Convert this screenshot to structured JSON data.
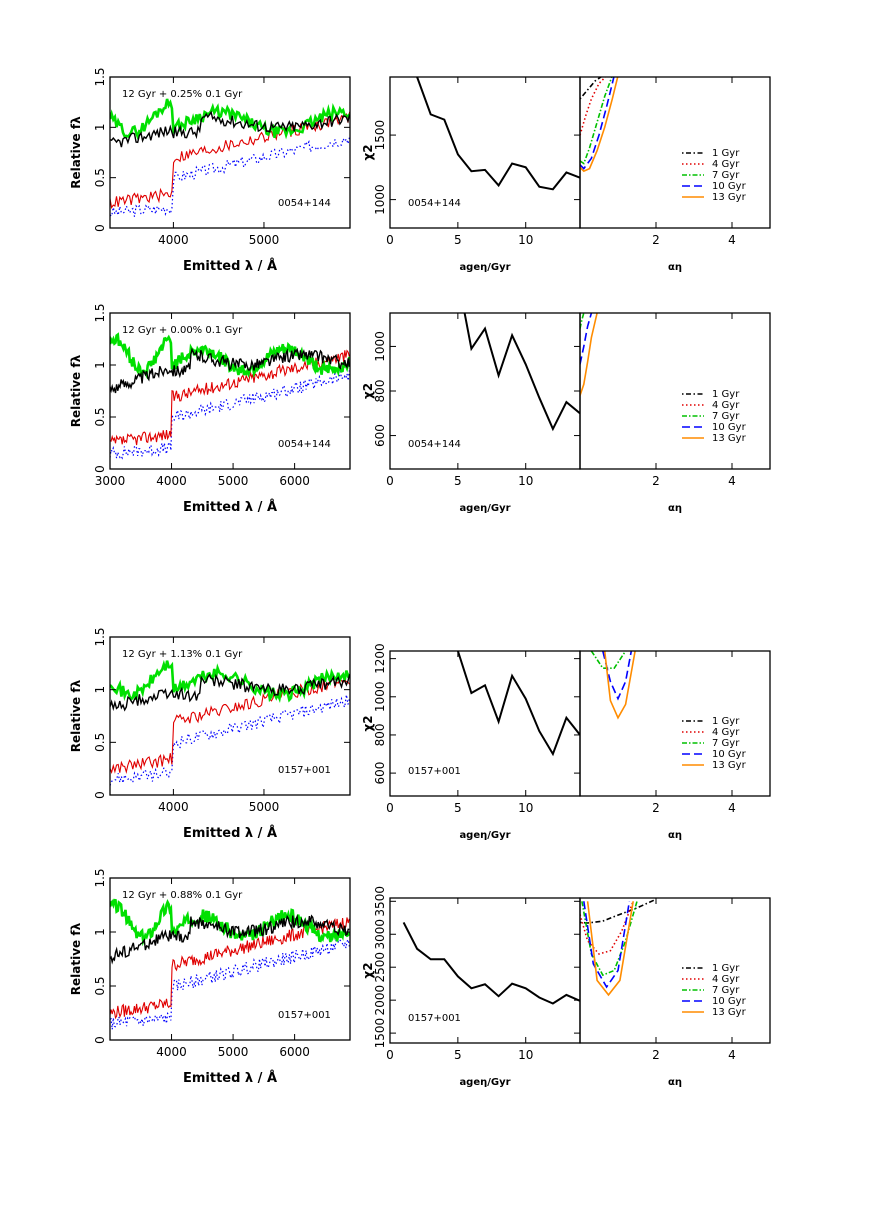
{
  "series_colors": {
    "1 Gyr": "#000000",
    "4 Gyr": "#e00000",
    "7 Gyr": "#00c000",
    "10 Gyr": "#0000ff",
    "13 Gyr": "#ff8c00"
  },
  "legend_labels": [
    "1 Gyr",
    "4 Gyr",
    "7 Gyr",
    "10 Gyr",
    "13 Gyr"
  ],
  "chart_data": [
    {
      "type": "line",
      "panel": "spectrum",
      "annotation": "12 Gyr + 0.25% 0.1 Gyr",
      "object": "0054+144",
      "xlabel": "Emitted λ / Å",
      "ylabel": "Relative fλ",
      "xlim": [
        3300,
        5950
      ],
      "ylim": [
        0,
        1.5
      ],
      "xticks": [
        "4000",
        "5000"
      ],
      "yticks": [
        "0",
        "0.5",
        "1",
        "1.5"
      ]
    },
    {
      "type": "line",
      "panel": "chi2-age",
      "object": "0054+144",
      "xlabel": "ageη/Gyr",
      "ylabel": "χ2",
      "xlim": [
        0,
        14
      ],
      "ylim": [
        780,
        1950
      ],
      "xticks": [
        "0",
        "5",
        "10"
      ],
      "yticks": [
        "1000",
        "1500"
      ],
      "x": [
        2,
        3,
        4,
        5,
        6,
        7,
        8,
        9,
        10,
        11,
        12,
        13,
        14
      ],
      "y": [
        1950,
        1660,
        1620,
        1350,
        1220,
        1230,
        1110,
        1280,
        1250,
        1100,
        1080,
        1210,
        1170
      ]
    },
    {
      "type": "line",
      "panel": "chi2-alpha",
      "xlabel": "αη",
      "xlim": [
        0,
        5
      ],
      "ylim": [
        780,
        1950
      ],
      "xticks": [
        "2",
        "4"
      ],
      "legend_position": "lower-right",
      "series": [
        {
          "name": "1 Gyr",
          "x": [
            0,
            0.2,
            0.4,
            0.6
          ],
          "y": [
            1780,
            1850,
            1920,
            1960
          ]
        },
        {
          "name": "4 Gyr",
          "x": [
            0,
            0.15,
            0.3,
            0.5,
            0.7
          ],
          "y": [
            1500,
            1650,
            1780,
            1900,
            1960
          ]
        },
        {
          "name": "7 Gyr",
          "x": [
            0,
            0.1,
            0.25,
            0.45,
            0.65,
            0.85
          ],
          "y": [
            1300,
            1280,
            1400,
            1600,
            1800,
            1960
          ]
        },
        {
          "name": "10 Gyr",
          "x": [
            0,
            0.1,
            0.3,
            0.5,
            0.7,
            0.9
          ],
          "y": [
            1270,
            1240,
            1320,
            1500,
            1720,
            1960
          ]
        },
        {
          "name": "13 Gyr",
          "x": [
            0,
            0.1,
            0.25,
            0.45,
            0.65,
            0.85,
            1.0
          ],
          "y": [
            1250,
            1220,
            1240,
            1380,
            1560,
            1780,
            1960
          ]
        }
      ]
    },
    {
      "type": "line",
      "panel": "spectrum",
      "annotation": "12 Gyr + 0.00% 0.1 Gyr",
      "object": "0054+144",
      "xlabel": "Emitted λ / Å",
      "ylabel": "Relative fλ",
      "xlim": [
        3000,
        6900
      ],
      "ylim": [
        0,
        1.5
      ],
      "xticks": [
        "3000",
        "4000",
        "5000",
        "6000"
      ],
      "yticks": [
        "0",
        "0.5",
        "1",
        "1.5"
      ]
    },
    {
      "type": "line",
      "panel": "chi2-age",
      "object": "0054+144",
      "xlabel": "ageη/Gyr",
      "ylabel": "χ2",
      "xlim": [
        0,
        14
      ],
      "ylim": [
        450,
        1150
      ],
      "xticks": [
        "0",
        "5",
        "10"
      ],
      "yticks": [
        "600",
        "800",
        "1000"
      ],
      "x": [
        5.5,
        6,
        7,
        8,
        9,
        10,
        11,
        12,
        13,
        14
      ],
      "y": [
        1150,
        990,
        1080,
        870,
        1050,
        920,
        770,
        630,
        750,
        700
      ]
    },
    {
      "type": "line",
      "panel": "chi2-alpha",
      "xlabel": "αη",
      "xlim": [
        0,
        5
      ],
      "ylim": [
        450,
        1150
      ],
      "xticks": [
        "2",
        "4"
      ],
      "legend_position": "lower-right",
      "series": [
        {
          "name": "7 Gyr",
          "x": [
            0,
            0.05,
            0.1
          ],
          "y": [
            1080,
            1120,
            1150
          ]
        },
        {
          "name": "10 Gyr",
          "x": [
            0,
            0.1,
            0.2,
            0.3
          ],
          "y": [
            920,
            1000,
            1090,
            1150
          ]
        },
        {
          "name": "13 Gyr",
          "x": [
            0,
            0.1,
            0.2,
            0.3,
            0.45
          ],
          "y": [
            780,
            830,
            930,
            1040,
            1150
          ]
        }
      ]
    },
    {
      "type": "line",
      "panel": "spectrum",
      "annotation": "12 Gyr + 1.13% 0.1 Gyr",
      "object": "0157+001",
      "xlabel": "Emitted λ / Å",
      "ylabel": "Relative fλ",
      "xlim": [
        3300,
        5950
      ],
      "ylim": [
        0,
        1.5
      ],
      "xticks": [
        "4000",
        "5000"
      ],
      "yticks": [
        "0",
        "0.5",
        "1",
        "1.5"
      ]
    },
    {
      "type": "line",
      "panel": "chi2-age",
      "object": "0157+001",
      "xlabel": "ageη/Gyr",
      "ylabel": "χ2",
      "xlim": [
        0,
        14
      ],
      "ylim": [
        480,
        1240
      ],
      "xticks": [
        "0",
        "5",
        "10"
      ],
      "yticks": [
        "600",
        "800",
        "1000",
        "1200"
      ],
      "x": [
        5,
        6,
        7,
        8,
        9,
        10,
        11,
        12,
        13,
        14
      ],
      "y": [
        1240,
        1020,
        1060,
        870,
        1110,
        990,
        820,
        700,
        890,
        800
      ]
    },
    {
      "type": "line",
      "panel": "chi2-alpha",
      "xlabel": "αη",
      "xlim": [
        0,
        5
      ],
      "ylim": [
        480,
        1240
      ],
      "xticks": [
        "2",
        "4"
      ],
      "legend_position": "lower-right",
      "series": [
        {
          "name": "7 Gyr",
          "x": [
            0.3,
            0.6,
            0.9,
            1.2
          ],
          "y": [
            1240,
            1150,
            1150,
            1240
          ]
        },
        {
          "name": "10 Gyr",
          "x": [
            0.6,
            0.8,
            1.0,
            1.2,
            1.35
          ],
          "y": [
            1240,
            1080,
            990,
            1080,
            1240
          ]
        },
        {
          "name": "13 Gyr",
          "x": [
            0.65,
            0.8,
            1.0,
            1.2,
            1.45
          ],
          "y": [
            1240,
            980,
            890,
            960,
            1240
          ]
        }
      ]
    },
    {
      "type": "line",
      "panel": "spectrum",
      "annotation": "12 Gyr + 0.88% 0.1 Gyr",
      "object": "0157+001",
      "xlabel": "Emitted λ / Å",
      "ylabel": "Relative fλ",
      "xlim": [
        3000,
        6900
      ],
      "ylim": [
        0,
        1.5
      ],
      "xticks": [
        "4000",
        "5000",
        "6000"
      ],
      "yticks": [
        "0",
        "0.5",
        "1",
        "1.5"
      ]
    },
    {
      "type": "line",
      "panel": "chi2-age",
      "object": "0157+001",
      "xlabel": "ageη/Gyr",
      "ylabel": "χ2",
      "xlim": [
        0,
        14
      ],
      "ylim": [
        1350,
        3550
      ],
      "xticks": [
        "0",
        "5",
        "10"
      ],
      "yticks": [
        "1500",
        "2000",
        "2500",
        "3000",
        "3500"
      ],
      "x": [
        1,
        2,
        3,
        4,
        5,
        6,
        7,
        8,
        9,
        10,
        11,
        12,
        13,
        14
      ],
      "y": [
        3180,
        2780,
        2620,
        2620,
        2360,
        2180,
        2240,
        2060,
        2250,
        2180,
        2040,
        1950,
        2080,
        1990
      ]
    },
    {
      "type": "line",
      "panel": "chi2-alpha",
      "xlabel": "αη",
      "xlim": [
        0,
        5
      ],
      "ylim": [
        1350,
        3550
      ],
      "xticks": [
        "2",
        "4"
      ],
      "legend_position": "lower-right",
      "series": [
        {
          "name": "1 Gyr",
          "x": [
            0,
            0.2,
            0.6,
            1.0,
            1.5,
            2.0
          ],
          "y": [
            3180,
            3170,
            3200,
            3290,
            3400,
            3530
          ]
        },
        {
          "name": "4 Gyr",
          "x": [
            0,
            0.2,
            0.5,
            0.8,
            1.1,
            1.4
          ],
          "y": [
            3300,
            2900,
            2700,
            2750,
            3050,
            3500
          ]
        },
        {
          "name": "7 Gyr",
          "x": [
            0.05,
            0.3,
            0.6,
            0.9,
            1.2,
            1.5
          ],
          "y": [
            3500,
            2700,
            2380,
            2450,
            2900,
            3500
          ]
        },
        {
          "name": "10 Gyr",
          "x": [
            0.1,
            0.35,
            0.7,
            1.0,
            1.3
          ],
          "y": [
            3500,
            2550,
            2200,
            2450,
            3500
          ]
        },
        {
          "name": "13 Gyr",
          "x": [
            0.2,
            0.45,
            0.75,
            1.05,
            1.4
          ],
          "y": [
            3500,
            2300,
            2080,
            2300,
            3500
          ]
        }
      ]
    }
  ]
}
